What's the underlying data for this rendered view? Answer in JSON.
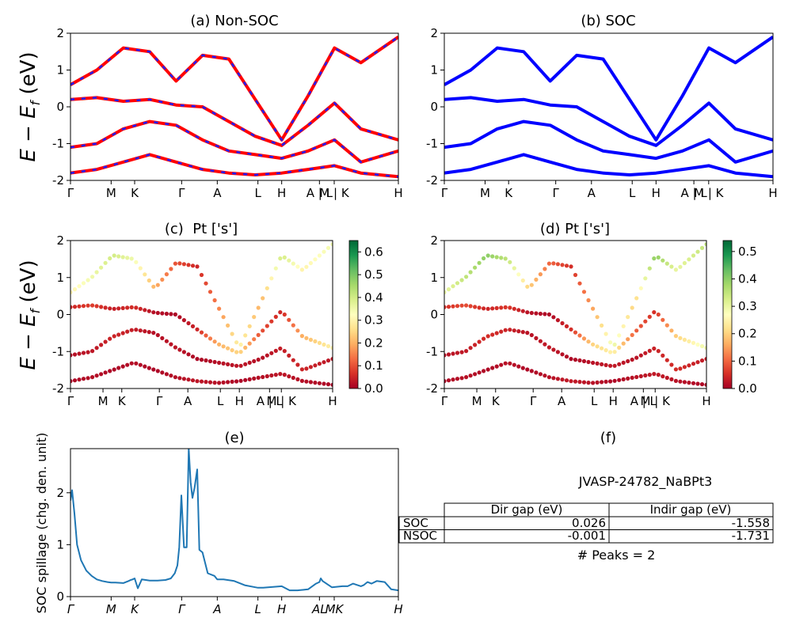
{
  "colors": {
    "non_soc": "#ff0000",
    "non_soc_dash": "#1f1fff",
    "soc": "#0000ff",
    "spillage": "#1f77b4",
    "cmap": [
      "#a50026",
      "#d73027",
      "#f46d43",
      "#fdae61",
      "#fee08b",
      "#ffffbf",
      "#d9ef8b",
      "#a6d96a",
      "#66bd63",
      "#1a9850",
      "#006837"
    ]
  },
  "kpath": {
    "labels": [
      "Γ",
      "M",
      "K",
      "Γ",
      "A",
      "L",
      "H",
      "A | L",
      "M | K",
      "H"
    ],
    "positions": [
      0,
      0.154,
      0.243,
      0.421,
      0.556,
      0.71,
      0.8,
      0.943,
      0.999,
      1.242
    ]
  },
  "kpath_italic_labels": [
    "Γ",
    "M",
    "K",
    "Γ",
    "A",
    "L",
    "H",
    "AL",
    "MK",
    "H"
  ],
  "panel_a": {
    "title": "(a) Non-SOC",
    "ylabel": "E − E_f (eV)"
  },
  "panel_b": {
    "title": "(b) SOC"
  },
  "panel_c": {
    "title": "(c)  Pt ['s']",
    "ylabel": "E − E_f (eV)"
  },
  "panel_d": {
    "title": "(d) Pt ['s']"
  },
  "panel_e": {
    "title": "(e)",
    "ylabel": "SOC spillage (chg. den. unit)"
  },
  "panel_f": {
    "title": "(f)",
    "material": "JVASP-24782_NaBPt3",
    "col_headers": [
      "Dir gap (eV)",
      "Indir gap (eV)"
    ],
    "rows": [
      {
        "label": "SOC",
        "dir": "0.026",
        "indir": "-1.558"
      },
      {
        "label": "NSOC",
        "dir": "-0.001",
        "indir": "-1.731"
      }
    ],
    "peaks_text": "# Peaks = 2"
  },
  "chart_data": [
    {
      "type": "line",
      "title": "(a) Non-SOC",
      "ylabel": "E − E_f (eV)",
      "ylim": [
        -2,
        2
      ],
      "x_ticks": [
        "Γ",
        "M",
        "K",
        "Γ",
        "A",
        "L",
        "H",
        "A | L",
        "M | K",
        "H"
      ],
      "y_ticks": [
        -2,
        -1,
        0,
        1,
        2
      ],
      "series": [
        {
          "name": "band",
          "x": [
            0,
            0.1,
            0.2,
            0.3,
            0.4,
            0.5,
            0.6,
            0.7,
            0.8,
            0.9,
            1.0,
            1.1,
            1.242
          ],
          "y": [
            0.2,
            0.25,
            0.15,
            0.2,
            0.05,
            0.0,
            -0.4,
            -0.8,
            -1.05,
            -0.5,
            0.1,
            -0.6,
            -0.9
          ]
        },
        {
          "name": "band",
          "x": [
            0,
            0.1,
            0.2,
            0.3,
            0.4,
            0.5,
            0.6,
            0.7,
            0.8,
            0.9,
            1.0,
            1.1,
            1.242
          ],
          "y": [
            0.6,
            1.0,
            1.6,
            1.5,
            0.7,
            1.4,
            1.3,
            0.2,
            -0.9,
            0.3,
            1.6,
            1.2,
            1.9
          ]
        },
        {
          "name": "band",
          "x": [
            0,
            0.1,
            0.2,
            0.3,
            0.4,
            0.5,
            0.6,
            0.7,
            0.8,
            0.9,
            1.0,
            1.1,
            1.242
          ],
          "y": [
            -1.1,
            -1.0,
            -0.6,
            -0.4,
            -0.5,
            -0.9,
            -1.2,
            -1.3,
            -1.4,
            -1.2,
            -0.9,
            -1.5,
            -1.2
          ]
        },
        {
          "name": "band",
          "x": [
            0,
            0.1,
            0.2,
            0.3,
            0.4,
            0.5,
            0.6,
            0.7,
            0.8,
            0.9,
            1.0,
            1.1,
            1.242
          ],
          "y": [
            -1.8,
            -1.7,
            -1.5,
            -1.3,
            -1.5,
            -1.7,
            -1.8,
            -1.85,
            -1.8,
            -1.7,
            -1.6,
            -1.8,
            -1.9
          ]
        }
      ]
    },
    {
      "type": "line",
      "title": "(b) SOC",
      "ylim": [
        -2,
        2
      ],
      "x_ticks": [
        "Γ",
        "M",
        "K",
        "Γ",
        "A",
        "L",
        "H",
        "A | L",
        "M | K",
        "H"
      ],
      "y_ticks": [
        -2,
        -1,
        0,
        1,
        2
      ],
      "series": [
        {
          "name": "band",
          "x": [
            0,
            0.1,
            0.2,
            0.3,
            0.4,
            0.5,
            0.6,
            0.7,
            0.8,
            0.9,
            1.0,
            1.1,
            1.242
          ],
          "y": [
            0.2,
            0.25,
            0.15,
            0.2,
            0.05,
            0.0,
            -0.4,
            -0.8,
            -1.05,
            -0.5,
            0.1,
            -0.6,
            -0.9
          ]
        },
        {
          "name": "band",
          "x": [
            0,
            0.1,
            0.2,
            0.3,
            0.4,
            0.5,
            0.6,
            0.7,
            0.8,
            0.9,
            1.0,
            1.1,
            1.242
          ],
          "y": [
            0.6,
            1.0,
            1.6,
            1.5,
            0.7,
            1.4,
            1.3,
            0.2,
            -0.9,
            0.3,
            1.6,
            1.2,
            1.9
          ]
        },
        {
          "name": "band",
          "x": [
            0,
            0.1,
            0.2,
            0.3,
            0.4,
            0.5,
            0.6,
            0.7,
            0.8,
            0.9,
            1.0,
            1.1,
            1.242
          ],
          "y": [
            -1.1,
            -1.0,
            -0.6,
            -0.4,
            -0.5,
            -0.9,
            -1.2,
            -1.3,
            -1.4,
            -1.2,
            -0.9,
            -1.5,
            -1.2
          ]
        },
        {
          "name": "band",
          "x": [
            0,
            0.1,
            0.2,
            0.3,
            0.4,
            0.5,
            0.6,
            0.7,
            0.8,
            0.9,
            1.0,
            1.1,
            1.242
          ],
          "y": [
            -1.8,
            -1.7,
            -1.5,
            -1.3,
            -1.5,
            -1.7,
            -1.8,
            -1.85,
            -1.8,
            -1.7,
            -1.6,
            -1.8,
            -1.9
          ]
        }
      ]
    },
    {
      "type": "scatter",
      "title": "(c)  Pt ['s']",
      "ylabel": "E − E_f (eV)",
      "ylim": [
        -2,
        2
      ],
      "colorbar_ticks": [
        0.0,
        0.1,
        0.2,
        0.3,
        0.4,
        0.5,
        0.6
      ],
      "colorbar_max": 0.65,
      "x_ticks": [
        "Γ",
        "M",
        "K",
        "Γ",
        "A",
        "L",
        "H",
        "A | L",
        "M | K",
        "H"
      ],
      "y_ticks": [
        -2,
        -1,
        0,
        1,
        2
      ],
      "bands": [
        {
          "x": [
            0,
            0.1,
            0.2,
            0.3,
            0.4,
            0.5,
            0.6,
            0.7,
            0.8,
            0.9,
            1.0,
            1.1,
            1.242
          ],
          "y": [
            0.2,
            0.25,
            0.15,
            0.2,
            0.05,
            0.0,
            -0.4,
            -0.8,
            -1.05,
            -0.5,
            0.1,
            -0.6,
            -0.9
          ],
          "w": [
            0.05,
            0.08,
            0.04,
            0.06,
            0.02,
            0.01,
            0.05,
            0.2,
            0.25,
            0.1,
            0.05,
            0.2,
            0.3
          ]
        },
        {
          "x": [
            0,
            0.1,
            0.2,
            0.3,
            0.4,
            0.5,
            0.6,
            0.7,
            0.8,
            0.9,
            1.0,
            1.1,
            1.242
          ],
          "y": [
            0.6,
            1.0,
            1.6,
            1.5,
            0.7,
            1.4,
            1.3,
            0.2,
            -0.9,
            0.3,
            1.6,
            1.2,
            1.9
          ],
          "w": [
            0.3,
            0.35,
            0.4,
            0.35,
            0.2,
            0.1,
            0.05,
            0.15,
            0.3,
            0.2,
            0.4,
            0.3,
            0.35
          ]
        },
        {
          "x": [
            0,
            0.1,
            0.2,
            0.3,
            0.4,
            0.5,
            0.6,
            0.7,
            0.8,
            0.9,
            1.0,
            1.1,
            1.242
          ],
          "y": [
            -1.1,
            -1.0,
            -0.6,
            -0.4,
            -0.5,
            -0.9,
            -1.2,
            -1.3,
            -1.4,
            -1.2,
            -0.9,
            -1.5,
            -1.2
          ],
          "w": [
            0.02,
            0.03,
            0.05,
            0.04,
            0.02,
            0.03,
            0.01,
            0.02,
            0.03,
            0.02,
            0.04,
            0.05,
            0.03
          ]
        },
        {
          "x": [
            0,
            0.1,
            0.2,
            0.3,
            0.4,
            0.5,
            0.6,
            0.7,
            0.8,
            0.9,
            1.0,
            1.1,
            1.242
          ],
          "y": [
            -1.8,
            -1.7,
            -1.5,
            -1.3,
            -1.5,
            -1.7,
            -1.8,
            -1.85,
            -1.8,
            -1.7,
            -1.6,
            -1.8,
            -1.9
          ],
          "w": [
            0.01,
            0.02,
            0.01,
            0.02,
            0.01,
            0.02,
            0.03,
            0.02,
            0.01,
            0.02,
            0.03,
            0.02,
            0.01
          ]
        }
      ]
    },
    {
      "type": "scatter",
      "title": "(d) Pt ['s']",
      "ylim": [
        -2,
        2
      ],
      "colorbar_ticks": [
        0.0,
        0.1,
        0.2,
        0.3,
        0.4,
        0.5
      ],
      "colorbar_max": 0.54,
      "x_ticks": [
        "Γ",
        "M",
        "K",
        "Γ",
        "A",
        "L",
        "H",
        "A | L",
        "M | K",
        "H"
      ],
      "y_ticks": [
        -2,
        -1,
        0,
        1,
        2
      ],
      "bands": [
        {
          "x": [
            0,
            0.1,
            0.2,
            0.3,
            0.4,
            0.5,
            0.6,
            0.7,
            0.8,
            0.9,
            1.0,
            1.1,
            1.242
          ],
          "y": [
            0.2,
            0.25,
            0.15,
            0.2,
            0.05,
            0.0,
            -0.4,
            -0.8,
            -1.05,
            -0.5,
            0.1,
            -0.6,
            -0.9
          ],
          "w": [
            0.05,
            0.08,
            0.04,
            0.06,
            0.02,
            0.01,
            0.05,
            0.2,
            0.25,
            0.1,
            0.05,
            0.2,
            0.3
          ]
        },
        {
          "x": [
            0,
            0.1,
            0.2,
            0.3,
            0.4,
            0.5,
            0.6,
            0.7,
            0.8,
            0.9,
            1.0,
            1.1,
            1.242
          ],
          "y": [
            0.6,
            1.0,
            1.6,
            1.5,
            0.7,
            1.4,
            1.3,
            0.2,
            -0.9,
            0.3,
            1.6,
            1.2,
            1.9
          ],
          "w": [
            0.3,
            0.35,
            0.4,
            0.35,
            0.2,
            0.1,
            0.05,
            0.15,
            0.3,
            0.2,
            0.4,
            0.3,
            0.35
          ]
        },
        {
          "x": [
            0,
            0.1,
            0.2,
            0.3,
            0.4,
            0.5,
            0.6,
            0.7,
            0.8,
            0.9,
            1.0,
            1.1,
            1.242
          ],
          "y": [
            -1.1,
            -1.0,
            -0.6,
            -0.4,
            -0.5,
            -0.9,
            -1.2,
            -1.3,
            -1.4,
            -1.2,
            -0.9,
            -1.5,
            -1.2
          ],
          "w": [
            0.02,
            0.03,
            0.05,
            0.04,
            0.02,
            0.03,
            0.01,
            0.02,
            0.03,
            0.02,
            0.04,
            0.05,
            0.03
          ]
        },
        {
          "x": [
            0,
            0.1,
            0.2,
            0.3,
            0.4,
            0.5,
            0.6,
            0.7,
            0.8,
            0.9,
            1.0,
            1.1,
            1.242
          ],
          "y": [
            -1.8,
            -1.7,
            -1.5,
            -1.3,
            -1.5,
            -1.7,
            -1.8,
            -1.85,
            -1.8,
            -1.7,
            -1.6,
            -1.8,
            -1.9
          ],
          "w": [
            0.01,
            0.02,
            0.01,
            0.02,
            0.01,
            0.02,
            0.03,
            0.02,
            0.01,
            0.02,
            0.03,
            0.02,
            0.01
          ]
        }
      ]
    },
    {
      "type": "line",
      "title": "(e)",
      "ylabel": "SOC spillage (chg. den. unit)",
      "ylim": [
        0,
        2.85
      ],
      "xlim": [
        0,
        1.242
      ],
      "x_ticks": [
        "Γ",
        "M",
        "K",
        "Γ",
        "A",
        "L",
        "H",
        "AL",
        "MK",
        "H"
      ],
      "y_ticks": [
        0,
        1,
        2
      ],
      "series": [
        {
          "name": "spillage",
          "x": [
            0,
            0.006,
            0.015,
            0.025,
            0.04,
            0.06,
            0.08,
            0.1,
            0.12,
            0.14,
            0.154,
            0.17,
            0.2,
            0.22,
            0.228,
            0.235,
            0.243,
            0.255,
            0.27,
            0.3,
            0.33,
            0.36,
            0.38,
            0.395,
            0.405,
            0.412,
            0.42,
            0.43,
            0.44,
            0.448,
            0.455,
            0.462,
            0.47,
            0.48,
            0.488,
            0.5,
            0.52,
            0.545,
            0.556,
            0.58,
            0.62,
            0.66,
            0.7,
            0.71,
            0.73,
            0.8,
            0.83,
            0.86,
            0.88,
            0.9,
            0.93,
            0.943,
            0.948,
            0.955,
            0.99,
            1.03,
            1.05,
            1.07,
            1.1,
            1.11,
            1.125,
            1.14,
            1.16,
            1.19,
            1.215,
            1.242
          ],
          "y": [
            1.85,
            2.05,
            1.6,
            1.0,
            0.7,
            0.5,
            0.4,
            0.33,
            0.3,
            0.28,
            0.27,
            0.27,
            0.26,
            0.3,
            0.32,
            0.33,
            0.35,
            0.16,
            0.33,
            0.31,
            0.31,
            0.32,
            0.35,
            0.45,
            0.6,
            0.95,
            1.95,
            0.95,
            0.95,
            2.85,
            2.2,
            1.9,
            2.1,
            2.45,
            0.9,
            0.85,
            0.45,
            0.4,
            0.33,
            0.33,
            0.3,
            0.22,
            0.18,
            0.17,
            0.17,
            0.2,
            0.12,
            0.12,
            0.13,
            0.14,
            0.25,
            0.28,
            0.35,
            0.3,
            0.18,
            0.2,
            0.2,
            0.25,
            0.2,
            0.22,
            0.28,
            0.25,
            0.3,
            0.28,
            0.14,
            0.12
          ]
        }
      ]
    }
  ]
}
